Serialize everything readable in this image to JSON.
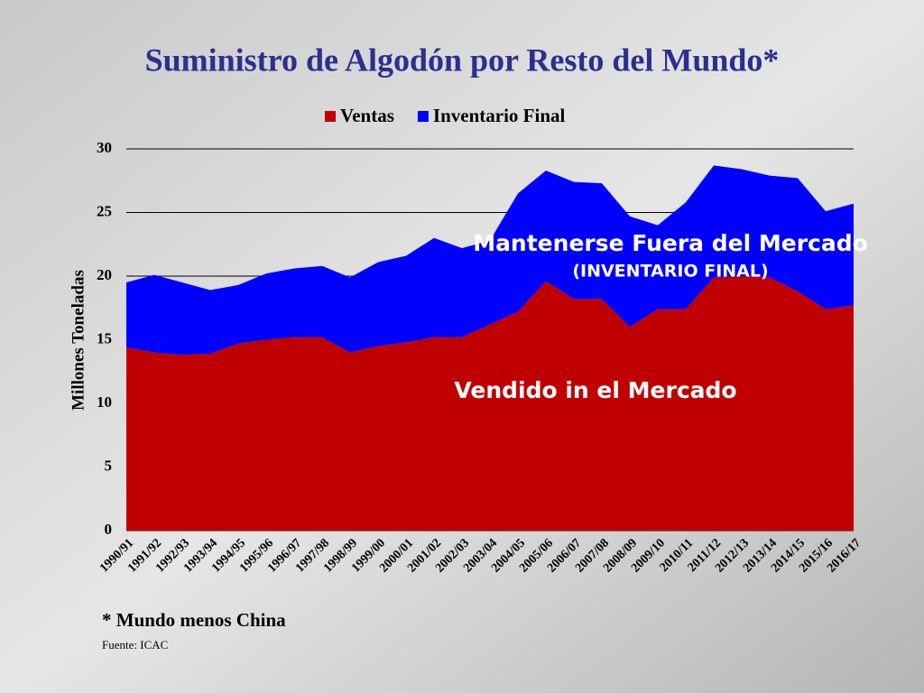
{
  "chart_data": {
    "type": "stacked-area",
    "title": "Suministro de Algodón por Resto del Mundo*",
    "y_label": "Millones Toneladas",
    "categories": [
      "1990/91",
      "1991/92",
      "1992/93",
      "1993/94",
      "1994/95",
      "1995/96",
      "1996/97",
      "1997/98",
      "1998/99",
      "1999/00",
      "2000/01",
      "2001/02",
      "2002/03",
      "2003/04",
      "2004/05",
      "2005/06",
      "2006/07",
      "2007/08",
      "2008/09",
      "2009/10",
      "2010/11",
      "2011/12",
      "2012/13",
      "2013/14",
      "2014/15",
      "2015/16",
      "2016/17"
    ],
    "series": [
      {
        "name": "Ventas",
        "color": "#c00000",
        "values": [
          14.4,
          14.0,
          13.8,
          13.9,
          14.7,
          15.0,
          15.2,
          15.2,
          14.0,
          14.5,
          14.8,
          15.2,
          15.2,
          16.2,
          17.2,
          19.6,
          18.2,
          18.2,
          16.0,
          17.4,
          17.4,
          19.9,
          20.0,
          19.9,
          18.8,
          17.4,
          17.7
        ]
      },
      {
        "name": "Inventario Final",
        "color": "#0000ff",
        "values": [
          5.1,
          6.1,
          5.7,
          5.0,
          4.6,
          5.2,
          5.4,
          5.6,
          5.9,
          6.6,
          6.8,
          7.8,
          7.0,
          6.6,
          9.3,
          8.7,
          9.2,
          9.1,
          8.7,
          6.6,
          8.4,
          8.8,
          8.4,
          8.0,
          8.9,
          7.7,
          8.0
        ]
      }
    ],
    "ylim": [
      0,
      30
    ],
    "yticks": [
      0,
      5,
      10,
      15,
      20,
      25,
      30
    ],
    "grid": true,
    "legend": "top",
    "annotations": [
      "Mantenerse Fuera del Mercado",
      "(INVENTARIO FINAL)",
      "Vendido in el Mercado"
    ],
    "footnote": "* Mundo menos China",
    "source": "Fuente: ICAC"
  }
}
